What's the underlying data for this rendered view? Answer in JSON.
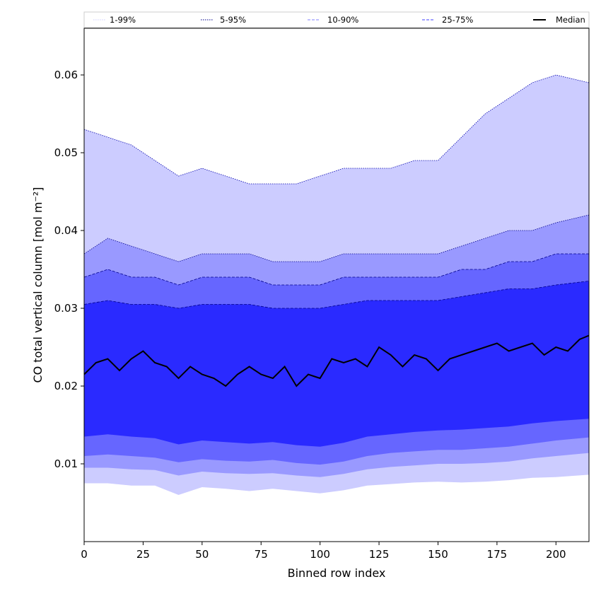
{
  "chart_data": {
    "type": "area",
    "xlabel": "Binned row index",
    "ylabel": "CO total vertical column [mol m⁻²]",
    "xlim": [
      0,
      214
    ],
    "ylim": [
      0.0,
      0.066
    ],
    "x_ticks": [
      0,
      25,
      50,
      75,
      100,
      125,
      150,
      175,
      200
    ],
    "y_ticks": [
      0.01,
      0.02,
      0.03,
      0.04,
      0.05,
      0.06
    ],
    "x_tick_labels": [
      "0",
      "25",
      "50",
      "75",
      "100",
      "125",
      "150",
      "175",
      "200"
    ],
    "y_tick_labels": [
      "0.01",
      "0.02",
      "0.03",
      "0.04",
      "0.05",
      "0.06"
    ],
    "grid": false,
    "legend_position": "top",
    "legend": [
      {
        "label": "1-99%",
        "color": "#ccccff",
        "style": "dotted"
      },
      {
        "label": "5-95%",
        "color": "#00008b",
        "style": "dotted"
      },
      {
        "label": "10-90%",
        "color": "#8080ff",
        "style": "dashed"
      },
      {
        "label": "25-75%",
        "color": "#4040ff",
        "style": "dashed"
      },
      {
        "label": "Median",
        "color": "#000000",
        "style": "solid"
      }
    ],
    "bands": [
      {
        "name": "1-99%",
        "fill": "#ccccff",
        "edge": "#0000aa",
        "upper": {
          "x": [
            0,
            10,
            20,
            30,
            40,
            50,
            60,
            70,
            80,
            90,
            100,
            110,
            120,
            130,
            140,
            150,
            160,
            170,
            180,
            190,
            200,
            214
          ],
          "y": [
            0.053,
            0.052,
            0.051,
            0.049,
            0.047,
            0.048,
            0.047,
            0.046,
            0.046,
            0.046,
            0.047,
            0.048,
            0.048,
            0.048,
            0.049,
            0.049,
            0.052,
            0.055,
            0.057,
            0.059,
            0.06,
            0.059
          ]
        },
        "lower": {
          "x": [
            0,
            10,
            20,
            30,
            40,
            50,
            60,
            70,
            80,
            90,
            100,
            110,
            120,
            130,
            140,
            150,
            160,
            170,
            180,
            190,
            200,
            214
          ],
          "y": [
            0.0075,
            0.0075,
            0.0072,
            0.0072,
            0.006,
            0.007,
            0.0068,
            0.0065,
            0.0068,
            0.0065,
            0.0062,
            0.0066,
            0.0072,
            0.0074,
            0.0076,
            0.0077,
            0.0076,
            0.0077,
            0.0079,
            0.0082,
            0.0083,
            0.0086
          ]
        }
      },
      {
        "name": "5-95%",
        "fill": "#9999ff",
        "edge": "#00008b",
        "upper": {
          "x": [
            0,
            10,
            20,
            30,
            40,
            50,
            60,
            70,
            80,
            90,
            100,
            110,
            120,
            130,
            140,
            150,
            160,
            170,
            180,
            190,
            200,
            214
          ],
          "y": [
            0.037,
            0.039,
            0.038,
            0.037,
            0.036,
            0.037,
            0.037,
            0.037,
            0.036,
            0.036,
            0.036,
            0.037,
            0.037,
            0.037,
            0.037,
            0.037,
            0.038,
            0.039,
            0.04,
            0.04,
            0.041,
            0.042
          ]
        },
        "lower": {
          "x": [
            0,
            10,
            20,
            30,
            40,
            50,
            60,
            70,
            80,
            90,
            100,
            110,
            120,
            130,
            140,
            150,
            160,
            170,
            180,
            190,
            200,
            214
          ],
          "y": [
            0.0095,
            0.0095,
            0.0093,
            0.0092,
            0.0085,
            0.009,
            0.0088,
            0.0087,
            0.0088,
            0.0085,
            0.0083,
            0.0087,
            0.0093,
            0.0096,
            0.0098,
            0.01,
            0.01,
            0.0101,
            0.0103,
            0.0107,
            0.011,
            0.0114
          ]
        }
      },
      {
        "name": "10-90%",
        "fill": "#6666ff",
        "edge": "#00008b",
        "upper": {
          "x": [
            0,
            10,
            20,
            30,
            40,
            50,
            60,
            70,
            80,
            90,
            100,
            110,
            120,
            130,
            140,
            150,
            160,
            170,
            180,
            190,
            200,
            214
          ],
          "y": [
            0.034,
            0.035,
            0.034,
            0.034,
            0.033,
            0.034,
            0.034,
            0.034,
            0.033,
            0.033,
            0.033,
            0.034,
            0.034,
            0.034,
            0.034,
            0.034,
            0.035,
            0.035,
            0.036,
            0.036,
            0.037,
            0.037
          ]
        },
        "lower": {
          "x": [
            0,
            10,
            20,
            30,
            40,
            50,
            60,
            70,
            80,
            90,
            100,
            110,
            120,
            130,
            140,
            150,
            160,
            170,
            180,
            190,
            200,
            214
          ],
          "y": [
            0.011,
            0.0112,
            0.011,
            0.0108,
            0.0102,
            0.0106,
            0.0104,
            0.0103,
            0.0105,
            0.0101,
            0.0099,
            0.0103,
            0.011,
            0.0114,
            0.0116,
            0.0118,
            0.0118,
            0.012,
            0.0122,
            0.0126,
            0.013,
            0.0134
          ]
        }
      },
      {
        "name": "25-75%",
        "fill": "#2a2aff",
        "edge": "#00008b",
        "upper": {
          "x": [
            0,
            10,
            20,
            30,
            40,
            50,
            60,
            70,
            80,
            90,
            100,
            110,
            120,
            130,
            140,
            150,
            160,
            170,
            180,
            190,
            200,
            214
          ],
          "y": [
            0.0305,
            0.031,
            0.0305,
            0.0305,
            0.03,
            0.0305,
            0.0305,
            0.0305,
            0.03,
            0.03,
            0.03,
            0.0305,
            0.031,
            0.031,
            0.031,
            0.031,
            0.0315,
            0.032,
            0.0325,
            0.0325,
            0.033,
            0.0335
          ]
        },
        "lower": {
          "x": [
            0,
            10,
            20,
            30,
            40,
            50,
            60,
            70,
            80,
            90,
            100,
            110,
            120,
            130,
            140,
            150,
            160,
            170,
            180,
            190,
            200,
            214
          ],
          "y": [
            0.0135,
            0.0138,
            0.0135,
            0.0133,
            0.0125,
            0.013,
            0.0128,
            0.0126,
            0.0128,
            0.0124,
            0.0122,
            0.0127,
            0.0135,
            0.0138,
            0.0141,
            0.0143,
            0.0144,
            0.0146,
            0.0148,
            0.0152,
            0.0155,
            0.0158
          ]
        }
      }
    ],
    "median": {
      "name": "Median",
      "x": [
        0,
        5,
        10,
        15,
        20,
        25,
        30,
        35,
        40,
        45,
        50,
        55,
        60,
        65,
        70,
        75,
        80,
        85,
        90,
        95,
        100,
        105,
        110,
        115,
        120,
        125,
        130,
        135,
        140,
        145,
        150,
        155,
        160,
        165,
        170,
        175,
        180,
        185,
        190,
        195,
        200,
        205,
        210,
        214
      ],
      "y": [
        0.0215,
        0.023,
        0.0235,
        0.022,
        0.0235,
        0.0245,
        0.023,
        0.0225,
        0.021,
        0.0225,
        0.0215,
        0.021,
        0.02,
        0.0215,
        0.0225,
        0.0215,
        0.021,
        0.0225,
        0.02,
        0.0215,
        0.021,
        0.0235,
        0.023,
        0.0235,
        0.0225,
        0.025,
        0.024,
        0.0225,
        0.024,
        0.0235,
        0.022,
        0.0235,
        0.024,
        0.0245,
        0.025,
        0.0255,
        0.0245,
        0.025,
        0.0255,
        0.024,
        0.025,
        0.0245,
        0.026,
        0.0265
      ]
    }
  }
}
